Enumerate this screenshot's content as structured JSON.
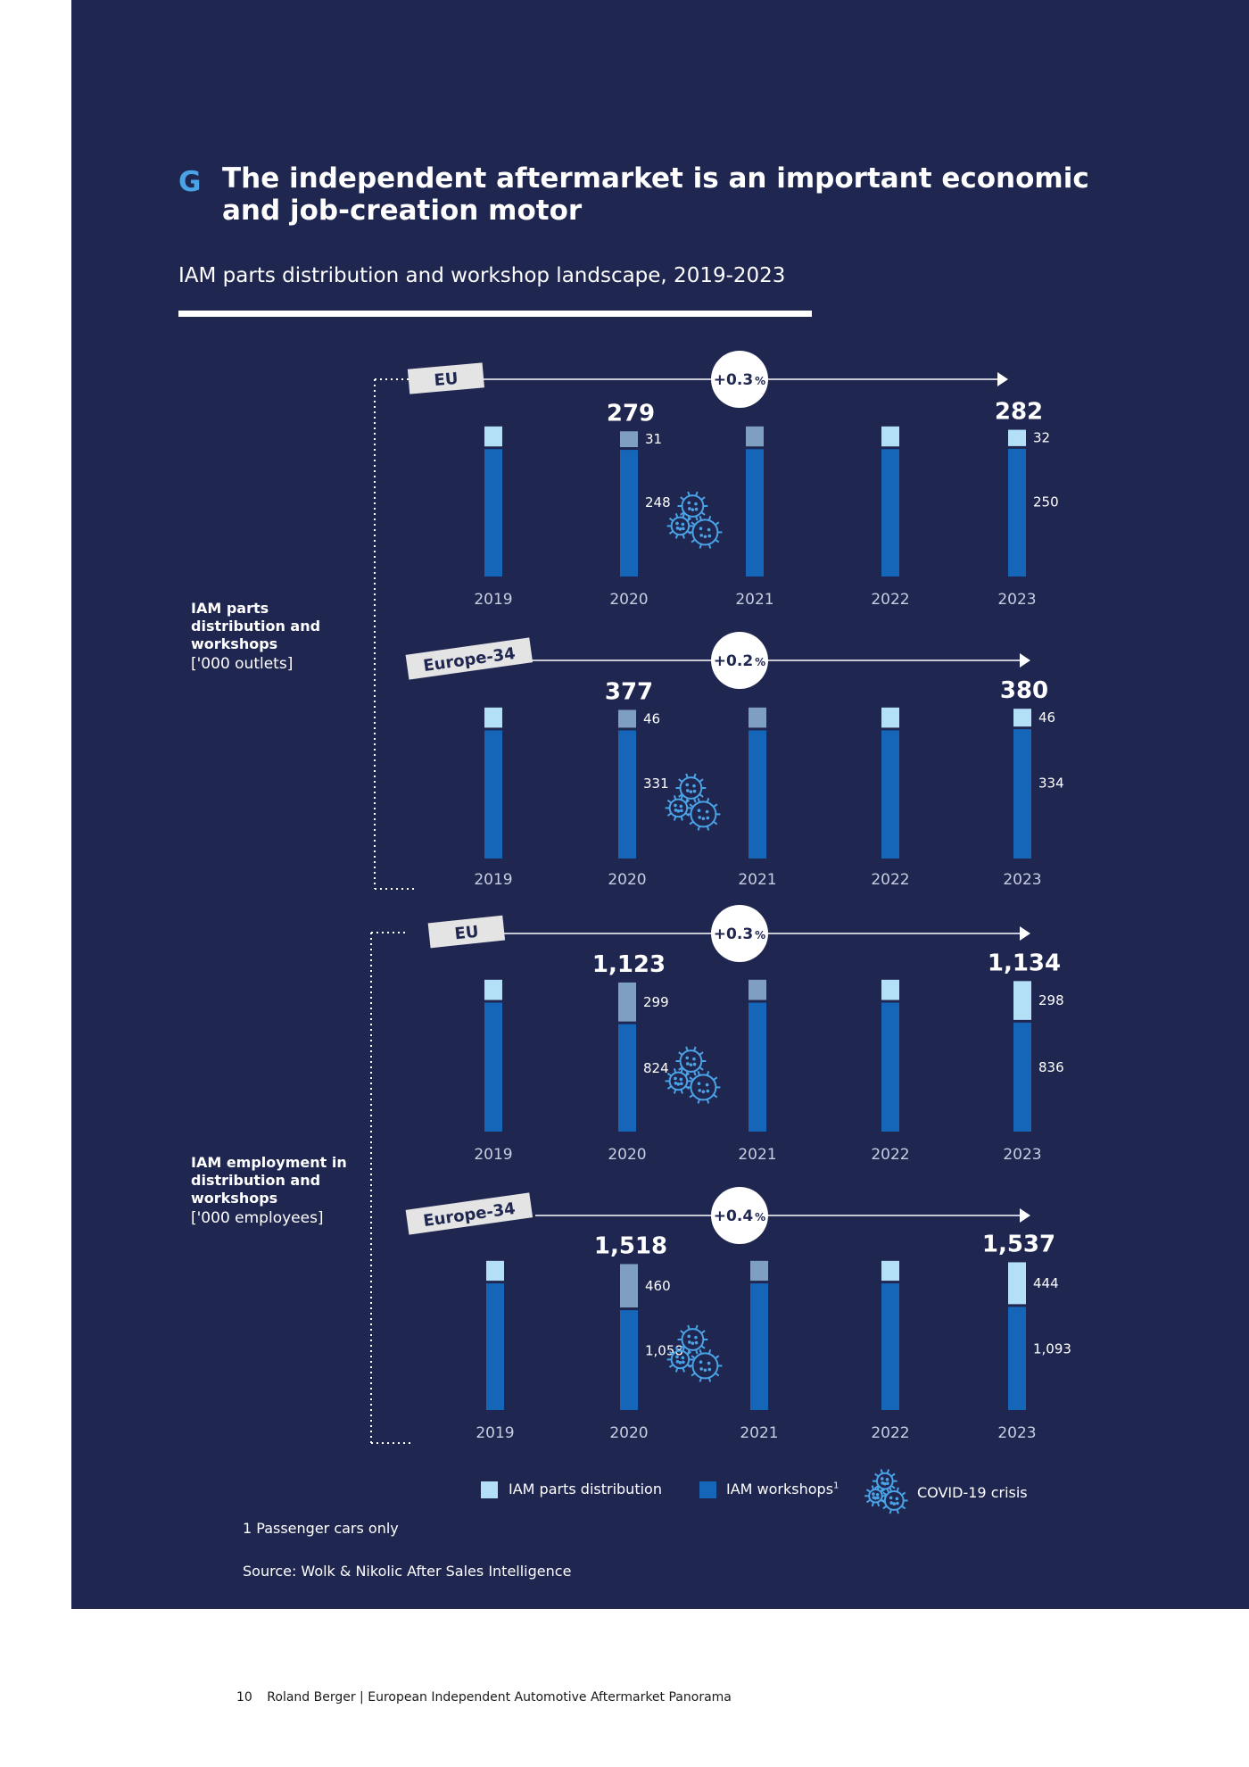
{
  "figure": {
    "letter": "G",
    "title": "The independent aftermarket is an important economic and job-creation motor",
    "subtitle": "IAM parts distribution and workshop landscape, 2019-2023"
  },
  "groups": [
    {
      "label": "IAM parts distribution and workshops",
      "unit": "['000 outlets]"
    },
    {
      "label": "IAM employment in distribution and workshops",
      "unit": "['000 employees]"
    }
  ],
  "colors": {
    "background": "#1f2650",
    "parts_distribution": "#b3e0f7",
    "parts_distribution_covid": "#7f9fc1",
    "workshops": "#1565b8",
    "tag_background": "#e4e4e4",
    "accent": "#4aa3e6"
  },
  "chart_data": [
    {
      "type": "bar",
      "region": "EU",
      "metric": "IAM parts distribution and workshops ['000 outlets]",
      "categories": [
        "2019",
        "2020",
        "2021",
        "2022",
        "2023"
      ],
      "cagr": "+0.3",
      "series": [
        {
          "name": "IAM parts distribution",
          "values": [
            null,
            31,
            null,
            null,
            32
          ]
        },
        {
          "name": "IAM workshops",
          "values": [
            null,
            248,
            null,
            null,
            250
          ]
        }
      ],
      "totals": [
        null,
        279,
        null,
        null,
        282
      ],
      "total_labels": [
        null,
        "279",
        null,
        null,
        "282"
      ],
      "segment_labels": {
        "1": [
          "31",
          "248"
        ],
        "4": [
          "32",
          "250"
        ]
      },
      "covid_year": "2020"
    },
    {
      "type": "bar",
      "region": "Europe-34",
      "metric": "IAM parts distribution and workshops ['000 outlets]",
      "categories": [
        "2019",
        "2020",
        "2021",
        "2022",
        "2023"
      ],
      "cagr": "+0.2",
      "series": [
        {
          "name": "IAM parts distribution",
          "values": [
            null,
            46,
            null,
            null,
            46
          ]
        },
        {
          "name": "IAM workshops",
          "values": [
            null,
            331,
            null,
            null,
            334
          ]
        }
      ],
      "totals": [
        null,
        377,
        null,
        null,
        380
      ],
      "total_labels": [
        null,
        "377",
        null,
        null,
        "380"
      ],
      "segment_labels": {
        "1": [
          "46",
          "331"
        ],
        "4": [
          "46",
          "334"
        ]
      },
      "covid_year": "2020"
    },
    {
      "type": "bar",
      "region": "EU",
      "metric": "IAM employment in distribution and workshops ['000 employees]",
      "categories": [
        "2019",
        "2020",
        "2021",
        "2022",
        "2023"
      ],
      "cagr": "+0.3",
      "series": [
        {
          "name": "IAM parts distribution",
          "values": [
            null,
            299,
            null,
            null,
            298
          ]
        },
        {
          "name": "IAM workshops",
          "values": [
            null,
            824,
            null,
            null,
            836
          ]
        }
      ],
      "totals": [
        null,
        1123,
        null,
        null,
        1134
      ],
      "total_labels": [
        null,
        "1,123",
        null,
        null,
        "1,134"
      ],
      "segment_labels": {
        "1": [
          "299",
          "824"
        ],
        "4": [
          "298",
          "836"
        ]
      },
      "covid_year": "2020"
    },
    {
      "type": "bar",
      "region": "Europe-34",
      "metric": "IAM employment in distribution and workshops ['000 employees]",
      "categories": [
        "2019",
        "2020",
        "2021",
        "2022",
        "2023"
      ],
      "cagr": "+0.4",
      "series": [
        {
          "name": "IAM parts distribution",
          "values": [
            null,
            460,
            null,
            null,
            444
          ]
        },
        {
          "name": "IAM workshops",
          "values": [
            null,
            1058,
            null,
            null,
            1093
          ]
        }
      ],
      "totals": [
        null,
        1518,
        null,
        null,
        1537
      ],
      "total_labels": [
        null,
        "1,518",
        null,
        null,
        "1,537"
      ],
      "segment_labels": {
        "1": [
          "460",
          "1,058"
        ],
        "4": [
          "444",
          "1,093"
        ]
      },
      "covid_year": "2020"
    }
  ],
  "legend": {
    "parts": "IAM parts distribution",
    "workshops": "IAM workshops",
    "workshops_sup": "1",
    "covid": "COVID-19 crisis"
  },
  "footnote": "1   Passenger cars only",
  "source": "Source: Wolk & Nikolic After Sales Intelligence",
  "footer": {
    "page_number": "10",
    "text": "Roland Berger | European Independent Automotive Aftermarket Panorama"
  }
}
